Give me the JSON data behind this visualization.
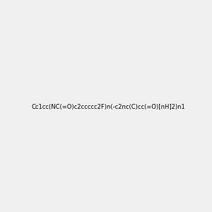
{
  "smiles": "Cc1cc(NC(=O)c2ccccc2F)n(-c2nc(C)cc(=O)[nH]2)n1",
  "image_size": 300,
  "background_color": "#f0f0f0"
}
